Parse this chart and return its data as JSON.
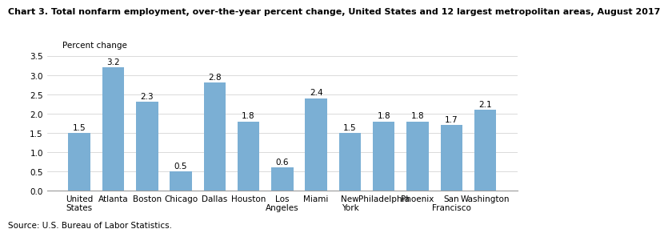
{
  "title": "Chart 3. Total nonfarm employment, over-the-year percent change, United States and 12 largest metropolitan areas, August 2017",
  "ylabel": "Percent change",
  "source": "Source: U.S. Bureau of Labor Statistics.",
  "categories": [
    "United\nStates",
    "Atlanta",
    "Boston",
    "Chicago",
    "Dallas",
    "Houston",
    "Los\nAngeles",
    "Miami",
    "New\nYork",
    "Philadelphia",
    "Phoenix",
    "San\nFrancisco",
    "Washington"
  ],
  "values": [
    1.5,
    3.2,
    2.3,
    0.5,
    2.8,
    1.8,
    0.6,
    2.4,
    1.5,
    1.8,
    1.8,
    1.7,
    2.1
  ],
  "bar_color": "#7BAFD4",
  "ylim": [
    0,
    3.5
  ],
  "yticks": [
    0.0,
    0.5,
    1.0,
    1.5,
    2.0,
    2.5,
    3.0,
    3.5
  ],
  "label_fontsize": 7.5,
  "title_fontsize": 8.0,
  "tick_fontsize": 7.5,
  "source_fontsize": 7.5
}
